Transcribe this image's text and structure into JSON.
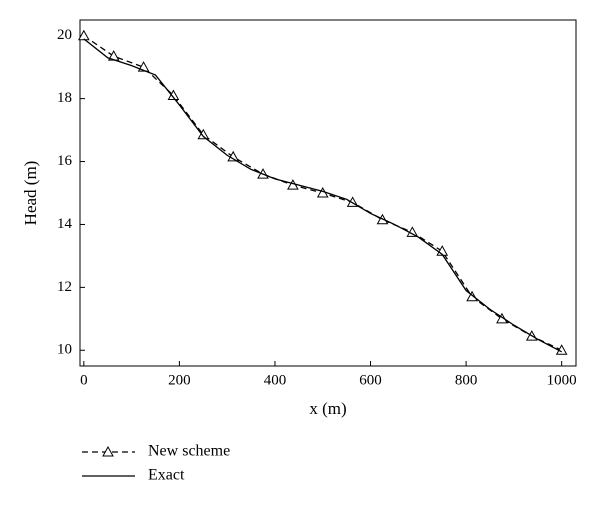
{
  "chart_data": {
    "type": "line",
    "x_label": "x (m)",
    "y_label": "Head (m)",
    "xlim": [
      -8,
      1030
    ],
    "ylim": [
      9.5,
      20.5
    ],
    "xticks": [
      0,
      200,
      400,
      600,
      800,
      1000
    ],
    "yticks": [
      10,
      12,
      14,
      16,
      18,
      20
    ],
    "series": [
      {
        "name": "New scheme",
        "color": "#000000",
        "dash": true,
        "marker": "triangle",
        "x": [
          0,
          62.5,
          125,
          187.5,
          250,
          312.5,
          375,
          437.5,
          500,
          562.5,
          625,
          687.5,
          750,
          812.5,
          875,
          937.5,
          1000
        ],
        "values": [
          20.0,
          19.35,
          19.0,
          18.1,
          16.85,
          16.15,
          15.6,
          15.25,
          15.0,
          14.7,
          14.15,
          13.75,
          13.15,
          11.7,
          11.0,
          10.45,
          10.0
        ]
      },
      {
        "name": "Exact",
        "color": "#000000",
        "dash": false,
        "marker": "none",
        "x": [
          0,
          50,
          100,
          150,
          200,
          250,
          300,
          350,
          400,
          450,
          500,
          550,
          600,
          650,
          700,
          750,
          800,
          850,
          900,
          950,
          1000
        ],
        "values": [
          19.9,
          19.3,
          19.05,
          18.75,
          17.8,
          16.8,
          16.2,
          15.75,
          15.45,
          15.25,
          15.05,
          14.8,
          14.35,
          14.0,
          13.6,
          13.05,
          11.9,
          11.3,
          10.8,
          10.35,
          9.95
        ]
      }
    ]
  }
}
